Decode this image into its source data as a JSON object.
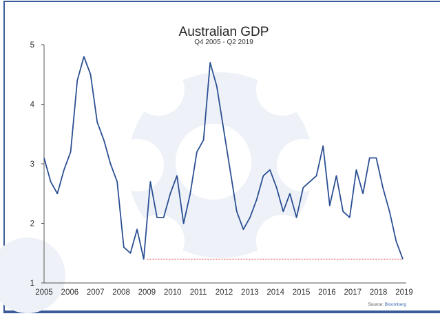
{
  "chart_data": {
    "type": "line",
    "title": "Australian GDP",
    "subtitle": "Q4 2005 - Q2 2019",
    "xlabel": "",
    "ylabel": "",
    "ylim": [
      1,
      5
    ],
    "xlim": [
      2005,
      2019
    ],
    "x_tick_labels": [
      "2005",
      "2006",
      "2007",
      "2008",
      "2009",
      "2010",
      "2011",
      "2012",
      "2013",
      "2014",
      "2015",
      "2016",
      "2017",
      "2018",
      "2019"
    ],
    "y_tick_labels": [
      "1",
      "2",
      "3",
      "4",
      "5"
    ],
    "grid": false,
    "series": [
      {
        "color": "#2b4f93",
        "values": [
          3.1,
          2.7,
          2.5,
          2.9,
          3.2,
          4.4,
          4.8,
          4.5,
          3.7,
          3.4,
          3.0,
          2.7,
          1.6,
          1.5,
          1.9,
          1.4,
          2.7,
          2.1,
          2.1,
          2.5,
          2.8,
          2.0,
          2.5,
          3.2,
          3.4,
          4.7,
          4.3,
          3.6,
          2.9,
          2.2,
          1.9,
          2.1,
          2.4,
          2.8,
          2.9,
          2.6,
          2.2,
          2.5,
          2.1,
          2.6,
          2.7,
          2.8,
          3.3,
          2.3,
          2.8,
          2.2,
          2.1,
          2.9,
          2.5,
          3.1,
          3.1,
          2.6,
          2.2,
          1.7,
          1.4
        ]
      }
    ],
    "reference_line": {
      "value": 1.4,
      "style": "dotted",
      "color": "#e03030",
      "from_x": 2009
    },
    "source_label": "Source:",
    "source_value": "Bloomberg"
  },
  "colors": {
    "frame": "#3a5a9a",
    "watermark": "#eef2f8"
  }
}
